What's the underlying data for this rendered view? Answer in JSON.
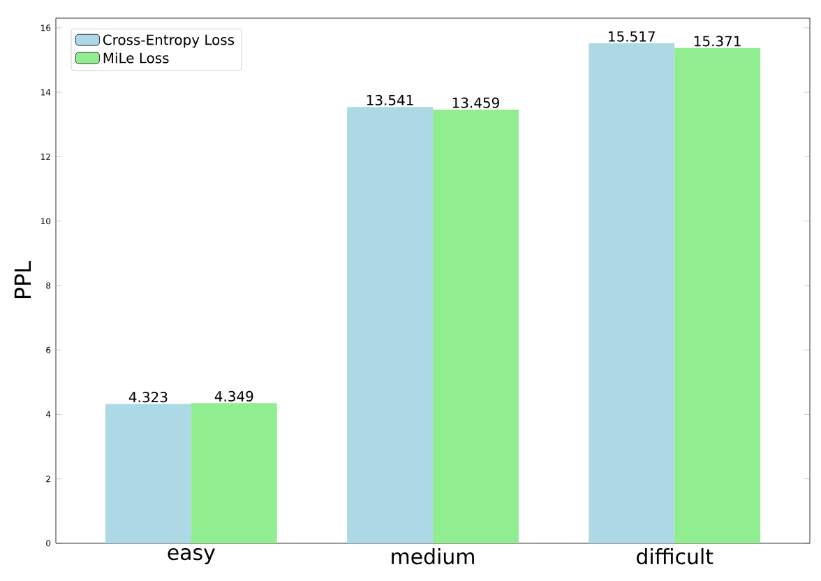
{
  "chart_data": {
    "type": "bar",
    "ylabel": "PPL",
    "categories": [
      "easy",
      "medium",
      "difficult"
    ],
    "series": [
      {
        "name": "Cross-Entropy Loss",
        "color": "#add8e6",
        "values": [
          4.323,
          13.541,
          15.517
        ],
        "value_labels": [
          "4.323",
          "13.541",
          "15.517"
        ]
      },
      {
        "name": "MiLe Loss",
        "color": "#90ee90",
        "values": [
          4.349,
          13.459,
          15.371
        ],
        "value_labels": [
          "4.349",
          "13.459",
          "15.371"
        ]
      }
    ],
    "ylim": [
      0,
      16.3
    ],
    "yticks": [
      0,
      2,
      4,
      6,
      8,
      10,
      12,
      14,
      16
    ],
    "legend": "top left",
    "grid": false
  }
}
